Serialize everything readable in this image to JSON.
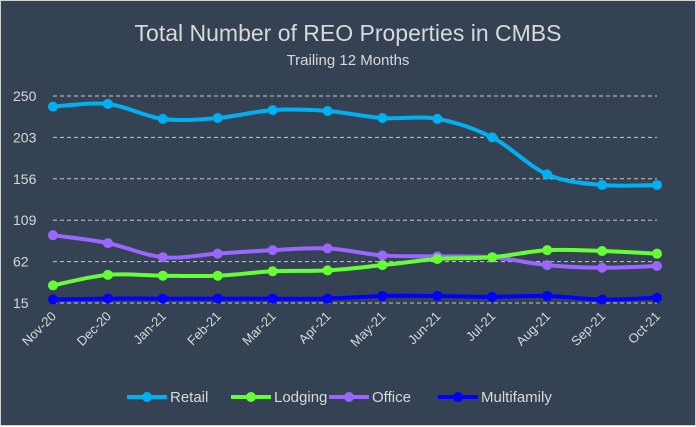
{
  "chart_data": {
    "type": "line",
    "title": "Total Number of REO Properties in CMBS",
    "subtitle": "Trailing 12 Months",
    "xlabel": "",
    "ylabel": "",
    "categories": [
      "Nov-20",
      "Dec-20",
      "Jan-21",
      "Feb-21",
      "Mar-21",
      "Apr-21",
      "May-21",
      "Jun-21",
      "Jul-21",
      "Aug-21",
      "Sep-21",
      "Oct-21"
    ],
    "yticks": [
      15,
      62,
      109,
      156,
      203,
      250
    ],
    "ylim": [
      15,
      250
    ],
    "grid": true,
    "legend_position": "bottom",
    "smooth": true,
    "series": [
      {
        "name": "Retail",
        "color": "#00b0f0",
        "values": [
          238,
          241,
          224,
          225,
          234,
          233,
          225,
          224,
          203,
          161,
          149,
          149
        ]
      },
      {
        "name": "Lodging",
        "color": "#66ff33",
        "values": [
          35,
          47,
          46,
          46,
          51,
          52,
          58,
          65,
          67,
          75,
          74,
          71
        ]
      },
      {
        "name": "Office",
        "color": "#9966ff",
        "values": [
          92,
          83,
          67,
          71,
          75,
          77,
          69,
          68,
          67,
          58,
          55,
          57
        ]
      },
      {
        "name": "Multifamily",
        "color": "#0000ff",
        "values": [
          19,
          20,
          20,
          20,
          20,
          20,
          23,
          23,
          22,
          23,
          19,
          21
        ]
      }
    ]
  }
}
